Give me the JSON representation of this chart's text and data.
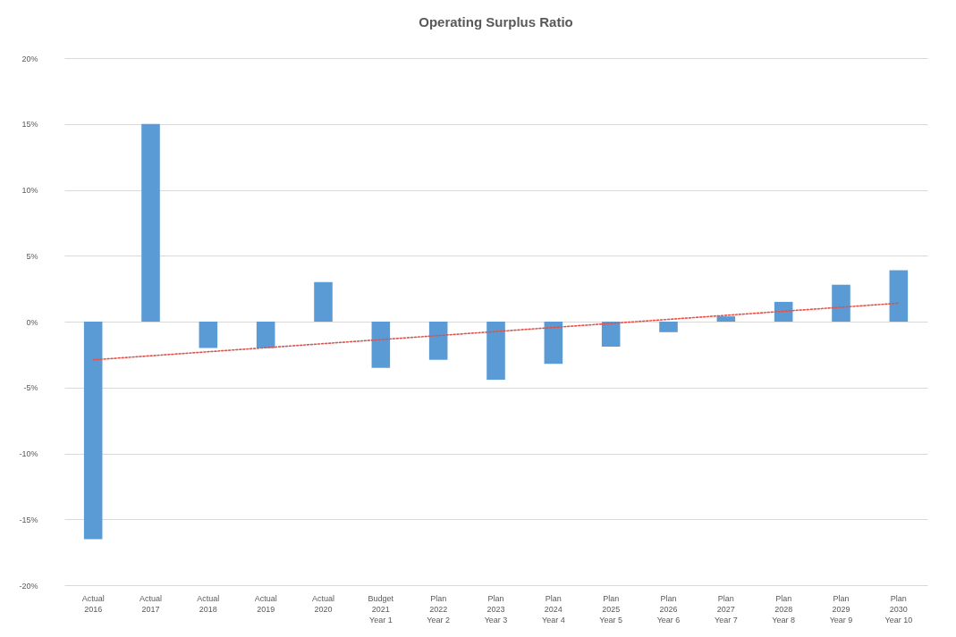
{
  "chart_data": {
    "type": "bar",
    "title": "Operating Surplus Ratio",
    "categories": [
      "Actual\n2016",
      "Actual\n2017",
      "Actual\n2018",
      "Actual\n2019",
      "Actual\n2020",
      "Budget\n2021\nYear 1",
      "Plan\n2022\nYear 2",
      "Plan\n2023\nYear 3",
      "Plan\n2024\nYear 4",
      "Plan\n2025\nYear 5",
      "Plan\n2026\nYear 6",
      "Plan\n2027\nYear 7",
      "Plan\n2028\nYear 8",
      "Plan\n2029\nYear 9",
      "Plan\n2030\nYear 10"
    ],
    "series": [
      {
        "color": "#5b9bd5",
        "values": [
          -16.5,
          15.0,
          -2.0,
          -2.0,
          3.0,
          -3.5,
          -2.9,
          -4.4,
          -3.2,
          -1.9,
          -0.8,
          0.4,
          1.5,
          2.8,
          3.9
        ]
      },
      {
        "type": "line",
        "color": "#e0534a",
        "line_style": "dotted",
        "x": [
          "Actual\n2016",
          "Plan\n2030\nYear 10"
        ],
        "values": [
          -2.9,
          1.4
        ]
      }
    ],
    "ylim": [
      -20,
      20
    ],
    "yticks": [
      {
        "value": -20,
        "label": "-20%"
      },
      {
        "value": -15,
        "label": "-15%"
      },
      {
        "value": -10,
        "label": "-10%"
      },
      {
        "value": -5,
        "label": "-5%"
      },
      {
        "value": 0,
        "label": "0%"
      },
      {
        "value": 5,
        "label": "5%"
      },
      {
        "value": 10,
        "label": "10%"
      },
      {
        "value": 15,
        "label": "15%"
      },
      {
        "value": 20,
        "label": "20%"
      }
    ],
    "grid": "y"
  }
}
